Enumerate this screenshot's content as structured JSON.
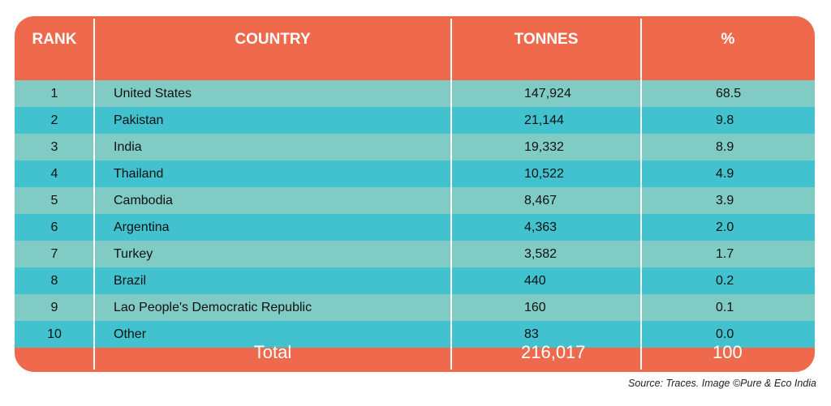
{
  "table": {
    "headers": {
      "rank": "RANK",
      "country": "COUNTRY",
      "tonnes": "TONNES",
      "percent": "%"
    },
    "rows": [
      {
        "rank": "1",
        "country": "United States",
        "tonnes": "147,924",
        "percent": "68.5"
      },
      {
        "rank": "2",
        "country": "Pakistan",
        "tonnes": "21,144",
        "percent": "9.8"
      },
      {
        "rank": "3",
        "country": "India",
        "tonnes": "19,332",
        "percent": "8.9"
      },
      {
        "rank": "4",
        "country": "Thailand",
        "tonnes": "10,522",
        "percent": "4.9"
      },
      {
        "rank": "5",
        "country": "Cambodia",
        "tonnes": "8,467",
        "percent": "3.9"
      },
      {
        "rank": "6",
        "country": "Argentina",
        "tonnes": "4,363",
        "percent": "2.0"
      },
      {
        "rank": "7",
        "country": "Turkey",
        "tonnes": "3,582",
        "percent": "1.7"
      },
      {
        "rank": "8",
        "country": "Brazil",
        "tonnes": "440",
        "percent": "0.2"
      },
      {
        "rank": "9",
        "country": "Lao People's Democratic Republic",
        "tonnes": "160",
        "percent": "0.1"
      },
      {
        "rank": "10",
        "country": "Other",
        "tonnes": "83",
        "percent": "0.0"
      }
    ],
    "total": {
      "label": "Total",
      "tonnes": "216,017",
      "percent": "100"
    }
  },
  "source": "Source: Traces. Image ©Pure & Eco India",
  "colors": {
    "header": "#ef6a4c",
    "row_light": "#80cbc4",
    "row_dark": "#41c2ce"
  }
}
